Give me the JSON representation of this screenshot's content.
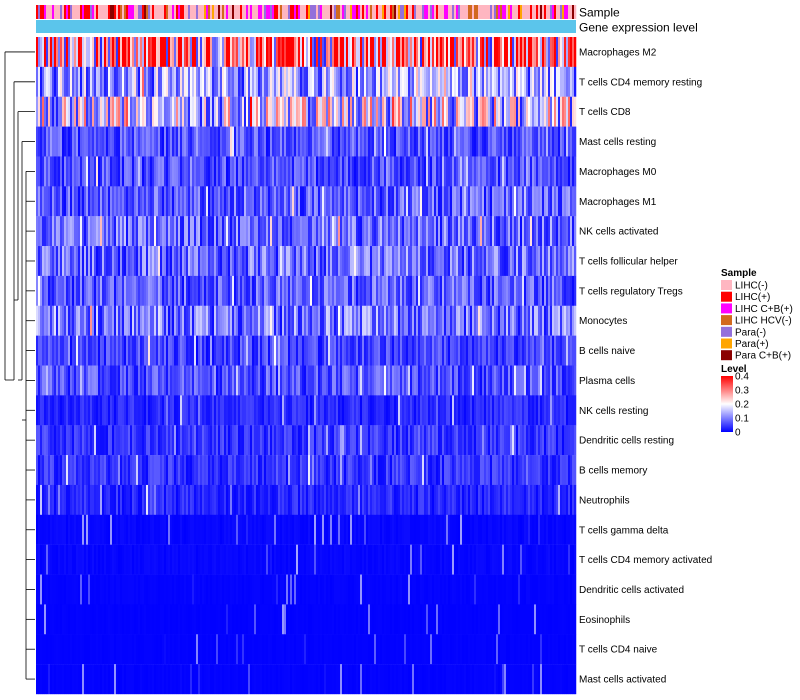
{
  "chart_data": {
    "type": "heatmap",
    "title": "",
    "annotation_rows": [
      "Sample",
      "Gene expression level"
    ],
    "rows": [
      {
        "name": "Macrophages M2",
        "mean": 0.3
      },
      {
        "name": "T cells CD4 memory resting",
        "mean": 0.12
      },
      {
        "name": "T cells CD8",
        "mean": 0.17
      },
      {
        "name": "Mast cells resting",
        "mean": 0.06
      },
      {
        "name": "Macrophages M0",
        "mean": 0.06
      },
      {
        "name": "Macrophages M1",
        "mean": 0.07
      },
      {
        "name": "NK cells activated",
        "mean": 0.08
      },
      {
        "name": "T cells follicular helper",
        "mean": 0.08
      },
      {
        "name": "T cells regulatory  Tregs",
        "mean": 0.07
      },
      {
        "name": "Monocytes",
        "mean": 0.09
      },
      {
        "name": "B cells naive",
        "mean": 0.05
      },
      {
        "name": "Plasma cells",
        "mean": 0.06
      },
      {
        "name": "NK cells resting",
        "mean": 0.03
      },
      {
        "name": "Dendritic cells resting",
        "mean": 0.04
      },
      {
        "name": "B cells memory",
        "mean": 0.04
      },
      {
        "name": "Neutrophils",
        "mean": 0.03
      },
      {
        "name": "T cells gamma delta",
        "mean": 0.01
      },
      {
        "name": "T cells CD4 memory activated",
        "mean": 0.01
      },
      {
        "name": "Dendritic cells activated",
        "mean": 0.005
      },
      {
        "name": "Eosinophils",
        "mean": 0.003
      },
      {
        "name": "T cells CD4 naive",
        "mean": 0.003
      },
      {
        "name": "Mast cells activated",
        "mean": 0.004
      }
    ],
    "n_samples": 270,
    "legend_sample": {
      "title": "Sample",
      "entries": [
        {
          "label": "LIHC(-)",
          "color": "#FFB6C1"
        },
        {
          "label": "LIHC(+)",
          "color": "#FF0000"
        },
        {
          "label": "LIHC C+B(+)",
          "color": "#FF00FF"
        },
        {
          "label": "LIHC HCV(-)",
          "color": "#D2691E"
        },
        {
          "label": "Para(-)",
          "color": "#9370DB"
        },
        {
          "label": "Para(+)",
          "color": "#FFA500"
        },
        {
          "label": "Para C+B(+)",
          "color": "#8B0000"
        }
      ]
    },
    "legend_level": {
      "title": "Level",
      "ticks": [
        "0.4",
        "0.3",
        "0.2",
        "0.1",
        "0"
      ],
      "range": [
        0,
        0.4
      ],
      "colors": [
        "#0000FF",
        "#FFFFFF",
        "#FF0000"
      ]
    },
    "gene_expression_color": "#5BC5EB",
    "sample_palette_weights": [
      0.5,
      0.13,
      0.12,
      0.08,
      0.1,
      0.04,
      0.03
    ]
  }
}
